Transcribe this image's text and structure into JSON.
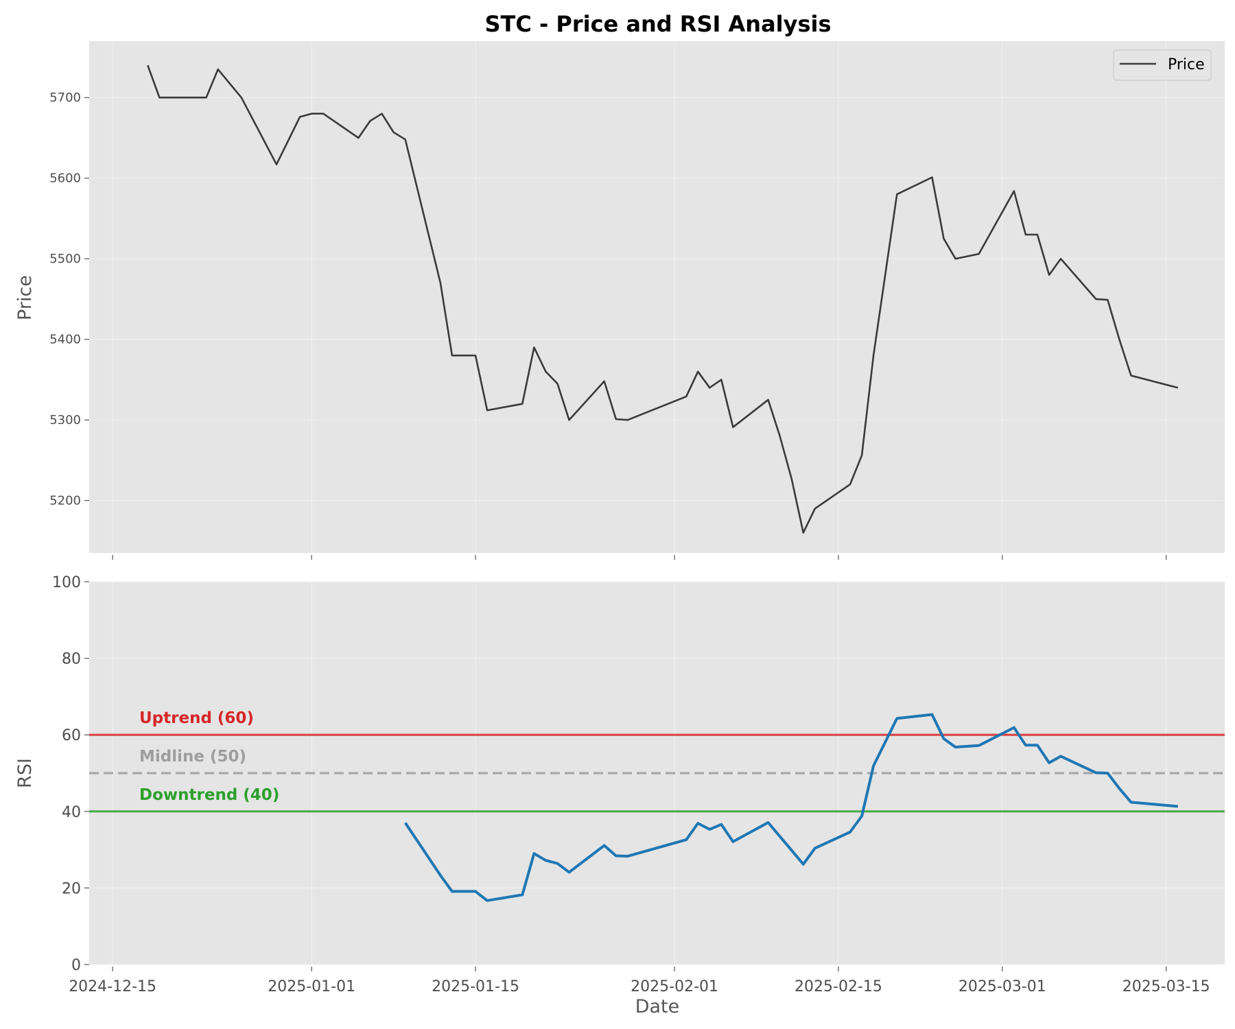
{
  "chart_data": {
    "title": "STC - Price and RSI Analysis",
    "xlabel": "Date",
    "colors": {
      "price": "#3a3a3a",
      "rsi": "#1f77b4",
      "uptrend": "#d62728",
      "midline": "#9e9e9e",
      "downtrend": "#2ca02c",
      "panel_bg": "#e5e5e5",
      "grid": "#f2f2f2"
    },
    "x_ticks": [
      "2024-12-15",
      "2025-01-01",
      "2025-01-15",
      "2025-02-01",
      "2025-02-15",
      "2025-03-01",
      "2025-03-15"
    ],
    "panels": [
      {
        "name": "price",
        "type": "line",
        "ylabel": "Price",
        "ylim": [
          5135,
          5770
        ],
        "yticks": [
          5200,
          5300,
          5400,
          5500,
          5600,
          5700
        ],
        "grid": true,
        "legend": "top-right",
        "series": [
          {
            "name": "Price",
            "x": [
              "2024-12-18",
              "2024-12-19",
              "2024-12-23",
              "2024-12-24",
              "2024-12-26",
              "2024-12-29",
              "2024-12-31",
              "2025-01-01",
              "2025-01-02",
              "2025-01-05",
              "2025-01-06",
              "2025-01-07",
              "2025-01-08",
              "2025-01-09",
              "2025-01-12",
              "2025-01-13",
              "2025-01-15",
              "2025-01-16",
              "2025-01-19",
              "2025-01-20",
              "2025-01-21",
              "2025-01-22",
              "2025-01-23",
              "2025-01-26",
              "2025-01-27",
              "2025-01-28",
              "2025-02-02",
              "2025-02-03",
              "2025-02-04",
              "2025-02-05",
              "2025-02-06",
              "2025-02-09",
              "2025-02-10",
              "2025-02-11",
              "2025-02-12",
              "2025-02-13",
              "2025-02-16",
              "2025-02-17",
              "2025-02-18",
              "2025-02-20",
              "2025-02-23",
              "2025-02-24",
              "2025-02-25",
              "2025-02-27",
              "2025-03-02",
              "2025-03-03",
              "2025-03-04",
              "2025-03-05",
              "2025-03-06",
              "2025-03-09",
              "2025-03-10",
              "2025-03-11",
              "2025-03-12",
              "2025-03-16"
            ],
            "values": [
              5740,
              5700,
              5700,
              5735,
              5700,
              5617,
              5676,
              5680,
              5680,
              5650,
              5671,
              5680,
              5657,
              5648,
              5470,
              5380,
              5380,
              5312,
              5320,
              5390,
              5360,
              5345,
              5300,
              5348,
              5301,
              5300,
              5329,
              5360,
              5340,
              5350,
              5291,
              5325,
              5280,
              5227,
              5160,
              5190,
              5220,
              5256,
              5380,
              5580,
              5601,
              5525,
              5500,
              5506,
              5584,
              5530,
              5530,
              5480,
              5500,
              5450,
              5449,
              5400,
              5355,
              5340
            ]
          }
        ]
      },
      {
        "name": "rsi",
        "type": "line",
        "ylabel": "RSI",
        "ylim": [
          0,
          100
        ],
        "yticks": [
          0,
          20,
          40,
          60,
          80,
          100
        ],
        "grid": true,
        "reference_lines": [
          {
            "label": "Uptrend (60)",
            "value": 60,
            "style": "solid"
          },
          {
            "label": "Midline (50)",
            "value": 50,
            "style": "dashed"
          },
          {
            "label": "Downtrend (40)",
            "value": 40,
            "style": "solid"
          }
        ],
        "series": [
          {
            "x": [
              "2025-01-09",
              "2025-01-12",
              "2025-01-13",
              "2025-01-15",
              "2025-01-16",
              "2025-01-19",
              "2025-01-20",
              "2025-01-21",
              "2025-01-22",
              "2025-01-23",
              "2025-01-26",
              "2025-01-27",
              "2025-01-28",
              "2025-02-02",
              "2025-02-03",
              "2025-02-04",
              "2025-02-05",
              "2025-02-06",
              "2025-02-09",
              "2025-02-12",
              "2025-02-13",
              "2025-02-16",
              "2025-02-17",
              "2025-02-18",
              "2025-02-20",
              "2025-02-23",
              "2025-02-24",
              "2025-02-25",
              "2025-02-27",
              "2025-03-02",
              "2025-03-03",
              "2025-03-04",
              "2025-03-05",
              "2025-03-06",
              "2025-03-09",
              "2025-03-10",
              "2025-03-11",
              "2025-03-12",
              "2025-03-16"
            ],
            "values": [
              37,
              23.3,
              19.1,
              19.1,
              16.7,
              18.2,
              29,
              27.2,
              26.4,
              24.1,
              31.1,
              28.4,
              28.3,
              32.6,
              36.9,
              35.3,
              36.6,
              32.1,
              37.1,
              26.2,
              30.4,
              34.6,
              38.8,
              51.9,
              64.3,
              65.3,
              59,
              56.8,
              57.2,
              61.9,
              57.3,
              57.3,
              52.7,
              54.4,
              50.1,
              50,
              46,
              42.4,
              41.3
            ]
          }
        ]
      }
    ]
  }
}
